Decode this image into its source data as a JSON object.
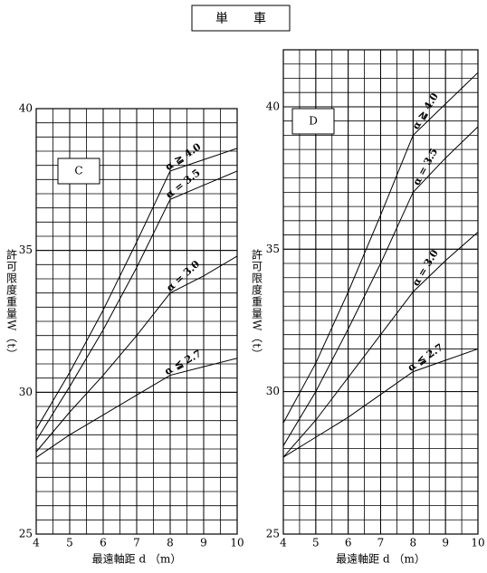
{
  "title": "単　　車",
  "chart_data": [
    {
      "type": "line",
      "panel_label": "C",
      "xlabel": "最遠軸距 d （m）",
      "ylabel": "許可限度重量W（t）",
      "x": [
        4,
        5,
        6,
        7,
        8,
        9,
        10
      ],
      "series": [
        {
          "name": "α ≧ 4.0",
          "color": "#000000",
          "values": [
            28.7,
            30.7,
            32.9,
            35.3,
            37.8,
            38.2,
            38.6
          ]
        },
        {
          "name": "α = 3.5",
          "color": "#000000",
          "values": [
            28.3,
            30.2,
            32.2,
            34.4,
            36.8,
            37.3,
            37.8
          ]
        },
        {
          "name": "α = 3.0",
          "color": "#000000",
          "values": [
            27.9,
            29.3,
            30.6,
            32.0,
            33.5,
            34.1,
            34.8
          ]
        },
        {
          "name": "α ≦ 2.7",
          "color": "#000000",
          "values": [
            27.7,
            28.5,
            29.2,
            29.9,
            30.6,
            30.9,
            31.2
          ]
        }
      ],
      "xlim": [
        4,
        10
      ],
      "ylim": [
        25,
        40
      ],
      "xticks": [
        4,
        5,
        6,
        7,
        8,
        9,
        10
      ],
      "yticks": [
        25,
        30,
        35,
        40
      ],
      "grid": true,
      "minor_step": 0.5
    },
    {
      "type": "line",
      "panel_label": "D",
      "xlabel": "最遠軸距 d （m）",
      "ylabel": "許可限度重量W（t）",
      "x": [
        4,
        5,
        6,
        7,
        8,
        9,
        10
      ],
      "series": [
        {
          "name": "α ≧ 4.0",
          "color": "#000000",
          "values": [
            28.9,
            31.0,
            33.5,
            36.2,
            39.0,
            40.1,
            41.2
          ]
        },
        {
          "name": "α = 3.5",
          "color": "#000000",
          "values": [
            28.1,
            30.0,
            32.2,
            34.5,
            37.0,
            38.2,
            39.3
          ]
        },
        {
          "name": "α = 3.0",
          "color": "#000000",
          "values": [
            27.7,
            29.0,
            30.5,
            32.0,
            33.5,
            34.6,
            35.6
          ]
        },
        {
          "name": "α ≦ 2.7",
          "color": "#000000",
          "values": [
            27.7,
            28.4,
            29.1,
            29.9,
            30.7,
            31.1,
            31.5
          ]
        }
      ],
      "xlim": [
        4,
        10
      ],
      "ylim": [
        25,
        42
      ],
      "xticks": [
        4,
        5,
        6,
        7,
        8,
        9,
        10
      ],
      "yticks": [
        25,
        30,
        35,
        40
      ],
      "grid": true,
      "minor_step": 0.5
    }
  ]
}
